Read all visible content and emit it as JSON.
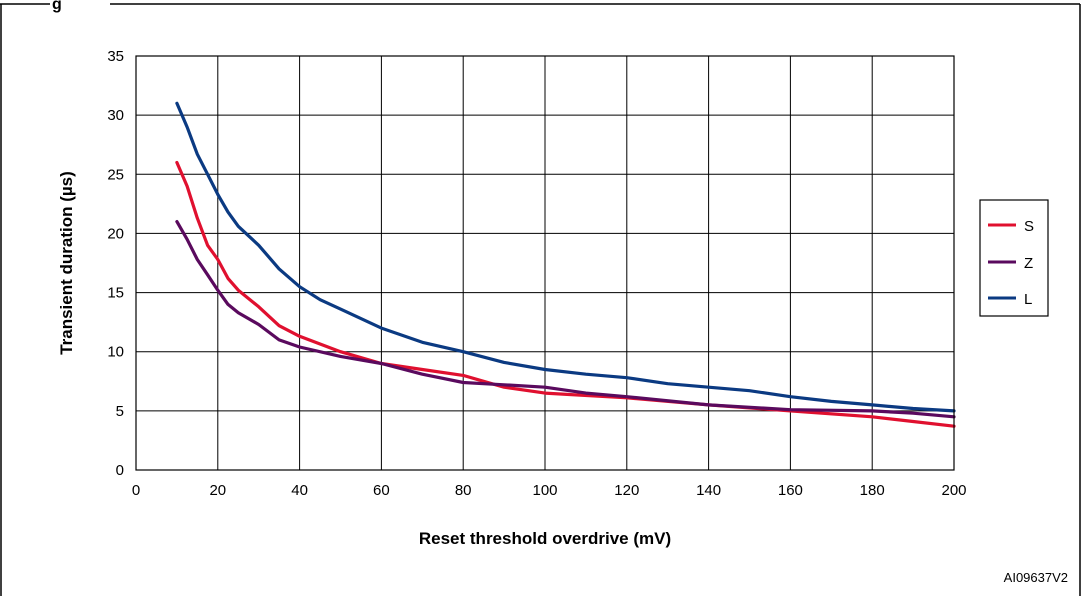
{
  "figure_id": "AI09637V2",
  "colors": {
    "S": "#e0102f",
    "Z": "#5a0a5e",
    "L": "#0b3a82",
    "grid": "#000000",
    "frame": "#000000"
  },
  "chart_data": {
    "type": "line",
    "title": "",
    "xlabel": "Reset threshold overdrive (mV)",
    "ylabel": "Transient duration (µs)",
    "xlim": [
      0,
      200
    ],
    "ylim": [
      0,
      35
    ],
    "xticks": [
      0,
      20,
      40,
      60,
      80,
      100,
      120,
      140,
      160,
      180,
      200
    ],
    "yticks": [
      0,
      5,
      10,
      15,
      20,
      25,
      30,
      35
    ],
    "grid": true,
    "legend_position": "right",
    "series": [
      {
        "name": "S",
        "x": [
          10,
          12.5,
          15,
          17.5,
          20,
          22.5,
          25,
          30,
          35,
          40,
          50,
          60,
          70,
          80,
          85,
          90,
          100,
          120,
          140,
          160,
          180,
          190,
          200
        ],
        "y": [
          26,
          24,
          21.3,
          19,
          17.8,
          16.2,
          15.2,
          13.8,
          12.2,
          11.3,
          10,
          9.0,
          8.5,
          8.0,
          7.5,
          7.0,
          6.5,
          6.1,
          5.5,
          5.0,
          4.5,
          4.1,
          3.7
        ]
      },
      {
        "name": "Z",
        "x": [
          10,
          12.5,
          15,
          17.5,
          20,
          22.5,
          25,
          30,
          35,
          40,
          50,
          60,
          70,
          80,
          90,
          100,
          110,
          120,
          140,
          160,
          180,
          190,
          200
        ],
        "y": [
          21,
          19.5,
          17.8,
          16.5,
          15.2,
          14.0,
          13.3,
          12.3,
          11.0,
          10.4,
          9.6,
          9.0,
          8.1,
          7.4,
          7.2,
          7.0,
          6.5,
          6.2,
          5.5,
          5.1,
          5.0,
          4.8,
          4.5
        ]
      },
      {
        "name": "L",
        "x": [
          10,
          12.5,
          15,
          17.5,
          20,
          22.5,
          25,
          30,
          35,
          40,
          45,
          50,
          60,
          70,
          80,
          90,
          100,
          110,
          120,
          130,
          140,
          150,
          160,
          170,
          180,
          190,
          200
        ],
        "y": [
          31,
          29,
          26.7,
          25,
          23.3,
          21.8,
          20.6,
          19.0,
          17.0,
          15.5,
          14.4,
          13.6,
          12.0,
          10.8,
          10.0,
          9.1,
          8.5,
          8.1,
          7.8,
          7.3,
          7.0,
          6.7,
          6.2,
          5.8,
          5.5,
          5.2,
          5.0
        ]
      }
    ]
  }
}
